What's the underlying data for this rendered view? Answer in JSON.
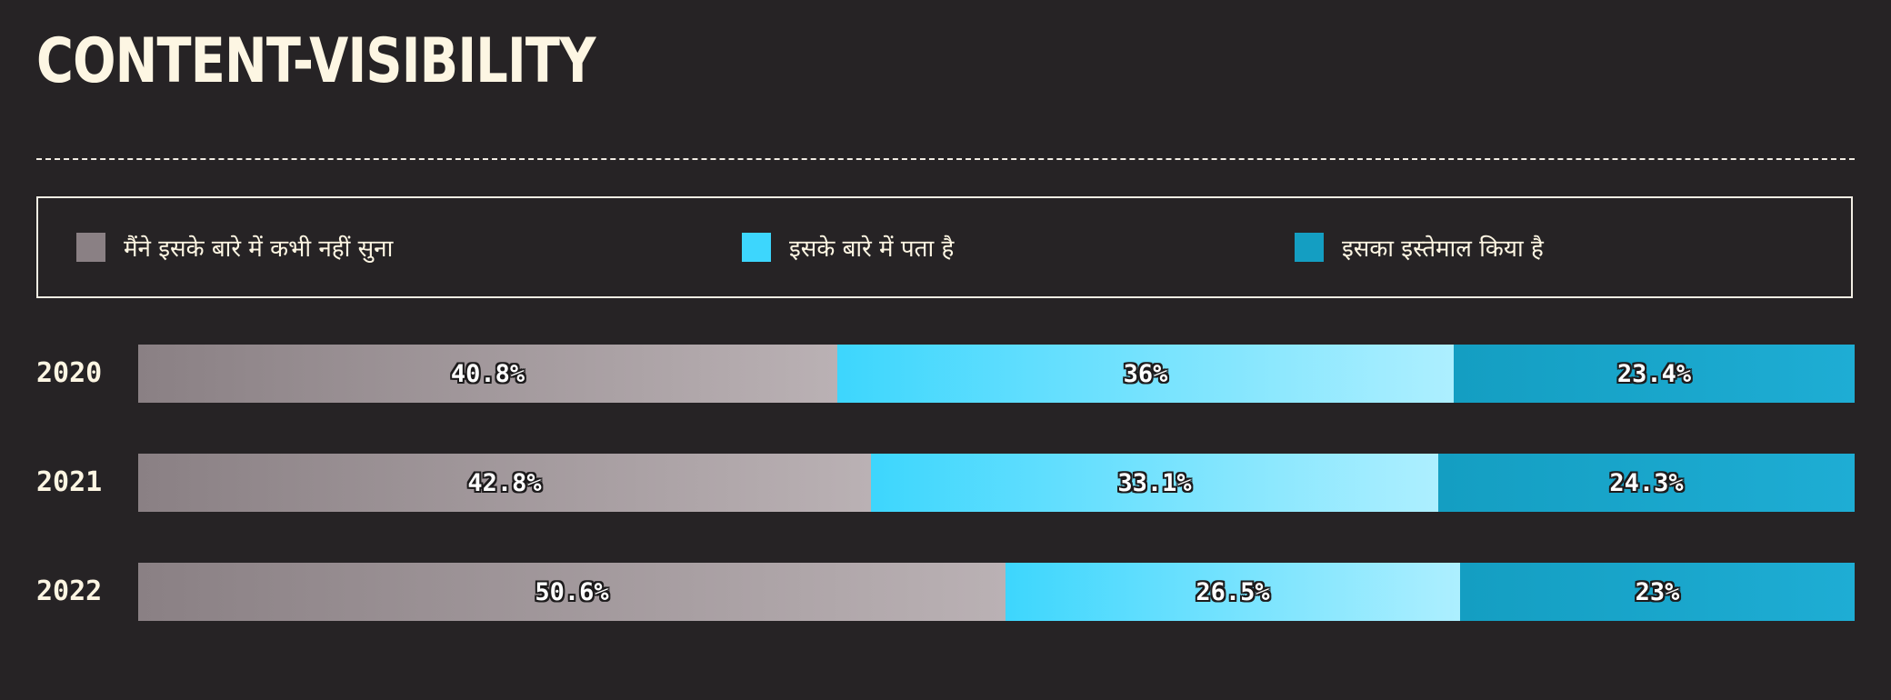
{
  "chart_data": {
    "type": "bar",
    "orientation": "horizontal",
    "stacked": true,
    "title": "CONTENT-VISIBILITY",
    "categories": [
      "2020",
      "2021",
      "2022"
    ],
    "series": [
      {
        "name": "मैंने इसके बारे में कभी नहीं सुना",
        "color": "#8a8084",
        "color_end": "#bab1b4",
        "values": [
          40.8,
          42.8,
          50.6
        ],
        "labels": [
          "40.8%",
          "42.8%",
          "50.6%"
        ]
      },
      {
        "name": "इसके बारे में पता है",
        "color": "#3dd6fd",
        "color_end": "#adefff",
        "values": [
          36,
          33.1,
          26.5
        ],
        "labels": [
          "36%",
          "33.1%",
          "26.5%"
        ]
      },
      {
        "name": "इसका इस्तेमाल किया है",
        "color": "#149ec2",
        "color_end": "#1eadd4",
        "values": [
          23.4,
          24.3,
          23
        ],
        "labels": [
          "23.4%",
          "24.3%",
          "23%"
        ]
      }
    ],
    "legend": "top",
    "grid": false
  }
}
